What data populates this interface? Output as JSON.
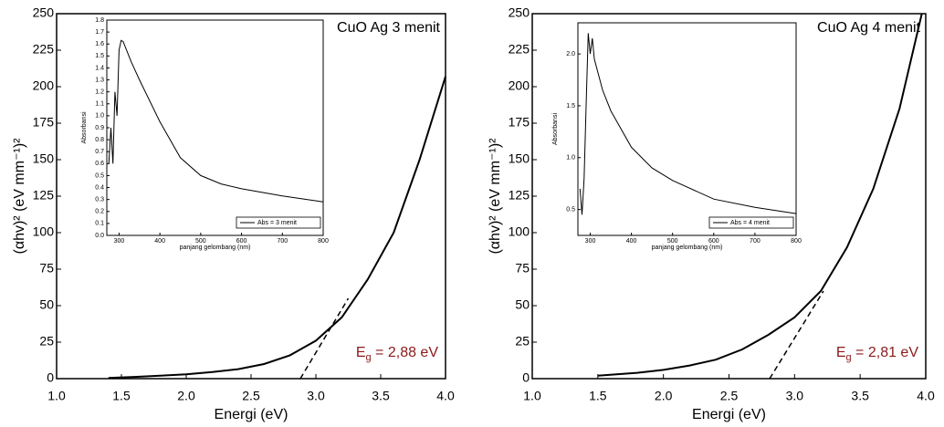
{
  "chart_data": [
    {
      "type": "line",
      "label": "CuO Ag 3 menit",
      "eg_label": [
        "E",
        "g",
        " = 2,88 eV"
      ],
      "xlabel": "Energi (eV)",
      "ylabel": "(αhv)² (eV mm⁻¹)²",
      "x": [
        1.4,
        1.6,
        1.8,
        2.0,
        2.2,
        2.4,
        2.6,
        2.8,
        3.0,
        3.2,
        3.4,
        3.6,
        3.8,
        4.0
      ],
      "values": [
        0.5,
        1.2,
        2,
        3,
        4.5,
        6.5,
        10,
        16,
        26,
        42,
        68,
        100,
        150,
        207
      ],
      "color": "#000000",
      "tangent": {
        "x": [
          2.88,
          3.25
        ],
        "y": [
          0,
          55
        ]
      },
      "xlim": [
        1.0,
        4.0
      ],
      "ylim": [
        0,
        250
      ],
      "xticks": [
        {
          "value": 1,
          "label": "1.0"
        },
        1.5,
        {
          "value": 2,
          "label": "2.0"
        },
        2.5,
        {
          "value": 3,
          "label": "3.0"
        },
        3.5,
        {
          "value": 4,
          "label": "4.0"
        }
      ],
      "yticks": [
        0,
        25,
        50,
        75,
        100,
        125,
        150,
        175,
        200,
        225,
        250
      ]
    },
    {
      "type": "line",
      "xlabel": "panjang gelombang (nm)",
      "ylabel": "Absorbansi",
      "x": [
        275,
        280,
        285,
        290,
        295,
        300,
        305,
        310,
        330,
        350,
        400,
        450,
        500,
        550,
        600,
        700,
        800
      ],
      "series": [
        {
          "name": "Abs = 3 menit",
          "color": "#000000",
          "values": [
            0.6,
            0.9,
            0.6,
            1.2,
            1.0,
            1.55,
            1.63,
            1.62,
            1.45,
            1.3,
            0.95,
            0.65,
            0.5,
            0.43,
            0.39,
            0.33,
            0.28
          ]
        }
      ],
      "xlim": [
        270,
        800
      ],
      "ylim": [
        0,
        1.8
      ],
      "xticks": [
        300,
        400,
        500,
        600,
        700,
        800
      ],
      "yticks": [
        {
          "value": 0,
          "label": "0.0"
        },
        0.1,
        0.2,
        0.3,
        0.4,
        0.5,
        0.6,
        0.7,
        0.8,
        0.9,
        {
          "value": 1,
          "label": "1.0"
        },
        1.1,
        1.2,
        1.3,
        1.4,
        1.5,
        1.6,
        1.7,
        1.8
      ]
    },
    {
      "type": "line",
      "label": "CuO Ag 4 menit",
      "eg_label": [
        "E",
        "g",
        " = 2,81 eV"
      ],
      "xlabel": "Energi (eV)",
      "ylabel": "(αhv)² (eV mm⁻¹)²",
      "x": [
        1.5,
        1.8,
        2.0,
        2.2,
        2.4,
        2.6,
        2.8,
        3.0,
        3.2,
        3.4,
        3.6,
        3.8,
        3.97
      ],
      "values": [
        2,
        4,
        6,
        9,
        13,
        20,
        30,
        42,
        60,
        90,
        130,
        185,
        250
      ],
      "color": "#000000",
      "tangent": {
        "x": [
          2.81,
          3.22
        ],
        "y": [
          0,
          60
        ]
      },
      "xlim": [
        1.0,
        4.0
      ],
      "ylim": [
        0,
        250
      ],
      "xticks": [
        {
          "value": 1,
          "label": "1.0"
        },
        1.5,
        {
          "value": 2,
          "label": "2.0"
        },
        2.5,
        {
          "value": 3,
          "label": "3.0"
        },
        3.5,
        {
          "value": 4,
          "label": "4.0"
        }
      ],
      "yticks": [
        0,
        25,
        50,
        75,
        100,
        125,
        150,
        175,
        200,
        225,
        250
      ]
    },
    {
      "type": "line",
      "xlabel": "panjang gelombang (nm)",
      "ylabel": "Absorbansi",
      "x": [
        275,
        280,
        285,
        290,
        295,
        300,
        305,
        310,
        330,
        350,
        400,
        450,
        500,
        600,
        700,
        800
      ],
      "series": [
        {
          "name": "Abs = 4 menit",
          "color": "#000000",
          "values": [
            0.7,
            0.45,
            0.8,
            1.5,
            2.2,
            2.0,
            2.15,
            1.95,
            1.65,
            1.45,
            1.1,
            0.9,
            0.78,
            0.6,
            0.52,
            0.46
          ]
        }
      ],
      "xlim": [
        270,
        800
      ],
      "ylim": [
        0.25,
        2.3
      ],
      "xticks": [
        300,
        400,
        500,
        600,
        700,
        800
      ],
      "yticks": [
        0.5,
        {
          "value": 1,
          "label": "1.0"
        },
        1.5,
        {
          "value": 2,
          "label": "2.0"
        }
      ]
    }
  ]
}
